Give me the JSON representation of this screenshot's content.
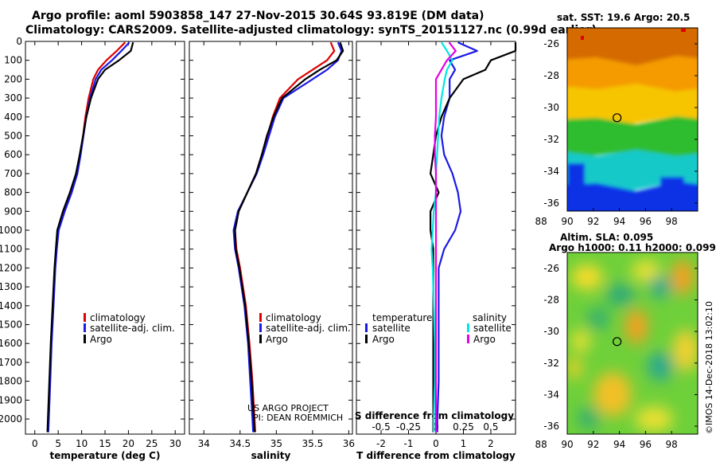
{
  "header": {
    "title_line1": "Argo profile: aoml 5903858_147 27-Nov-2015 30.64S 93.819E (DM data)",
    "title_line2": "Climatology: CARS2009. Satellite-adjusted climatology: synTS_20151127.nc (0.99d earlier)"
  },
  "maps": {
    "sst_title": "sat. SST: 19.6 Argo: 20.5",
    "sla_title_line1": "Altim. SLA: 0.095",
    "sla_title_line2": "Argo h1000: 0.11 h2000: 0.099",
    "lat_ticks": [
      "-26",
      "-28",
      "-30",
      "-32",
      "-34",
      "-36"
    ],
    "lon_ticks": [
      "88",
      "90",
      "92",
      "94",
      "96",
      "98"
    ],
    "float_position": {
      "lon": 93.819,
      "lat": -30.64
    },
    "colors": {
      "sst_warm": "#d46a00",
      "sst_orange": "#f59b00",
      "sst_yellow": "#f7c500",
      "sst_green": "#2dbd2d",
      "sst_cyan": "#12c9c9",
      "sst_blue": "#1030e6",
      "sla_green": "#6ed03a"
    }
  },
  "footer": {
    "imos_stamp": "©IMOS 14-Dec-2018 13:02:10",
    "credit_line1": "US ARGO PROJECT",
    "credit_line2": "PI: DEAN ROEMMICH"
  },
  "chart_data": [
    {
      "type": "line",
      "title": "",
      "xlabel": "temperature (deg C)",
      "ylabel": "",
      "xlim": [
        -2,
        32
      ],
      "ylim": [
        2080,
        0
      ],
      "xticks": [
        "0",
        "5",
        "10",
        "15",
        "20",
        "25",
        "30"
      ],
      "yticks": [
        "0",
        "100",
        "200",
        "300",
        "400",
        "500",
        "600",
        "700",
        "800",
        "900",
        "1000",
        "1100",
        "1200",
        "1300",
        "1400",
        "1500",
        "1600",
        "1700",
        "1800",
        "1900",
        "2000"
      ],
      "legend": [
        "climatology",
        "satellite-adj. clim.",
        "Argo"
      ],
      "series": [
        {
          "name": "climatology",
          "color": "#e00000",
          "depth": [
            5,
            50,
            100,
            150,
            200,
            300,
            400,
            500,
            600,
            700,
            800,
            900,
            1000,
            1100,
            1200,
            1400,
            1600,
            1800,
            2000,
            2070
          ],
          "values": [
            19.3,
            17.5,
            15.3,
            13.5,
            12.5,
            11.5,
            10.8,
            10.3,
            9.7,
            9.0,
            7.8,
            6.2,
            5.0,
            4.6,
            4.3,
            3.9,
            3.5,
            3.2,
            2.9,
            2.8
          ]
        },
        {
          "name": "satellite-adj. clim.",
          "color": "#1a1ae6",
          "depth": [
            5,
            50,
            100,
            150,
            200,
            300,
            400,
            500,
            600,
            700,
            800,
            900,
            1000,
            1100,
            1200,
            1400,
            1600,
            1800,
            2000,
            2070
          ],
          "values": [
            20.2,
            18.5,
            16.5,
            14.2,
            13.0,
            11.8,
            11.0,
            10.4,
            9.8,
            9.1,
            7.9,
            6.4,
            5.1,
            4.7,
            4.4,
            4.0,
            3.6,
            3.3,
            3.0,
            2.9
          ]
        },
        {
          "name": "Argo",
          "color": "#000000",
          "depth": [
            5,
            50,
            100,
            150,
            200,
            300,
            400,
            500,
            600,
            700,
            800,
            900,
            1000,
            1100,
            1200,
            1400,
            1600,
            1800,
            2000,
            2070
          ],
          "values": [
            21.0,
            20.5,
            18.0,
            15.0,
            13.5,
            12.0,
            11.0,
            10.3,
            9.6,
            8.8,
            7.5,
            6.0,
            4.8,
            4.5,
            4.2,
            3.8,
            3.4,
            3.1,
            2.8,
            2.7
          ]
        }
      ]
    },
    {
      "type": "line",
      "title": "",
      "xlabel": "salinity",
      "ylabel": "",
      "xlim": [
        33.8,
        36.05
      ],
      "ylim": [
        2080,
        0
      ],
      "xticks": [
        "34",
        "34.5",
        "35",
        "35.5",
        "36"
      ],
      "legend": [
        "climatology",
        "satellite-adj. clim.",
        "Argo"
      ],
      "series": [
        {
          "name": "climatology",
          "color": "#e00000",
          "depth": [
            5,
            50,
            100,
            150,
            200,
            300,
            400,
            500,
            600,
            700,
            800,
            900,
            1000,
            1100,
            1200,
            1400,
            1600,
            1800,
            2000,
            2070
          ],
          "values": [
            35.75,
            35.8,
            35.7,
            35.5,
            35.3,
            35.05,
            34.95,
            34.88,
            34.8,
            34.72,
            34.6,
            34.48,
            34.43,
            34.45,
            34.5,
            34.58,
            34.63,
            34.67,
            34.7,
            34.71
          ]
        },
        {
          "name": "satellite-adj. clim.",
          "color": "#1a1ae6",
          "depth": [
            5,
            50,
            100,
            150,
            200,
            300,
            400,
            500,
            600,
            700,
            800,
            900,
            1000,
            1100,
            1200,
            1400,
            1600,
            1800,
            2000,
            2070
          ],
          "values": [
            35.85,
            35.9,
            35.85,
            35.7,
            35.5,
            35.1,
            34.98,
            34.9,
            34.82,
            34.73,
            34.6,
            34.47,
            34.41,
            34.43,
            34.48,
            34.56,
            34.61,
            34.64,
            34.67,
            34.68
          ]
        },
        {
          "name": "Argo",
          "color": "#000000",
          "depth": [
            5,
            50,
            100,
            150,
            200,
            300,
            400,
            500,
            600,
            700,
            800,
            900,
            1000,
            1100,
            1200,
            1400,
            1600,
            1800,
            2000,
            2070
          ],
          "values": [
            35.88,
            35.92,
            35.83,
            35.6,
            35.4,
            35.08,
            34.96,
            34.87,
            34.8,
            34.72,
            34.6,
            34.48,
            34.43,
            34.44,
            34.49,
            34.57,
            34.62,
            34.66,
            34.69,
            34.7
          ]
        }
      ]
    },
    {
      "type": "line",
      "title": "",
      "xlabel": "T difference from climatology",
      "x2label": "S difference from climatology",
      "ylabel": "",
      "xlim": [
        -2.9,
        2.9
      ],
      "x2lim": [
        -0.725,
        0.725
      ],
      "ylim": [
        2080,
        0
      ],
      "xticks": [
        "-2",
        "-1",
        "0",
        "1",
        "2"
      ],
      "x2ticks": [
        "-0.5",
        "-0.25",
        "0",
        "0.25",
        "0.5"
      ],
      "legend_temperature_title": "temperature",
      "legend_salinity_title": "salinity",
      "legend_temperature": [
        "satellite",
        "Argo"
      ],
      "legend_salinity": [
        "satellite",
        "Argo"
      ],
      "series": [
        {
          "name": "T satellite",
          "color": "#1a1ae6",
          "units": "degC",
          "depth": [
            5,
            50,
            100,
            150,
            200,
            300,
            400,
            500,
            600,
            700,
            800,
            900,
            1000,
            1100,
            1200,
            1400,
            1600,
            1800,
            2000,
            2070
          ],
          "values": [
            0.8,
            1.5,
            0.5,
            0.7,
            0.5,
            0.5,
            0.3,
            0.2,
            0.3,
            0.6,
            0.8,
            0.9,
            0.7,
            0.3,
            0.1,
            0.1,
            0.1,
            0.1,
            0.05,
            0.05
          ]
        },
        {
          "name": "T Argo",
          "color": "#000000",
          "units": "degC",
          "depth": [
            5,
            50,
            100,
            150,
            200,
            300,
            400,
            500,
            600,
            700,
            800,
            900,
            1000,
            1100,
            1200,
            1400,
            1600,
            1800,
            2000,
            2070
          ],
          "values": [
            2.9,
            2.9,
            2.0,
            1.8,
            1.0,
            0.5,
            0.2,
            0.0,
            -0.1,
            -0.2,
            0.1,
            -0.2,
            -0.2,
            -0.1,
            -0.1,
            -0.1,
            -0.1,
            -0.1,
            -0.1,
            -0.1
          ]
        },
        {
          "name": "S satellite",
          "color": "#00e6e6",
          "units": "psu",
          "depth": [
            5,
            50,
            100,
            150,
            200,
            300,
            400,
            500,
            600,
            700,
            800,
            900,
            1000,
            1100,
            1200,
            1400,
            1600,
            1800,
            2000,
            2070
          ],
          "values": [
            0.05,
            0.1,
            0.15,
            0.1,
            0.08,
            0.05,
            0.03,
            0.02,
            0.01,
            0.0,
            0.0,
            -0.02,
            -0.03,
            -0.04,
            -0.03,
            -0.02,
            -0.01,
            -0.01,
            -0.02,
            -0.02
          ]
        },
        {
          "name": "S Argo",
          "color": "#e600e6",
          "units": "psu",
          "depth": [
            5,
            50,
            100,
            150,
            200,
            300,
            400,
            500,
            600,
            700,
            800,
            900,
            1000,
            1100,
            1200,
            1400,
            1600,
            1800,
            2000,
            2070
          ],
          "values": [
            0.12,
            0.18,
            0.1,
            0.05,
            0.0,
            0.0,
            0.0,
            -0.01,
            -0.01,
            0.0,
            0.0,
            0.0,
            0.0,
            0.0,
            0.0,
            0.0,
            0.0,
            0.0,
            0.0,
            0.0
          ]
        }
      ]
    }
  ]
}
